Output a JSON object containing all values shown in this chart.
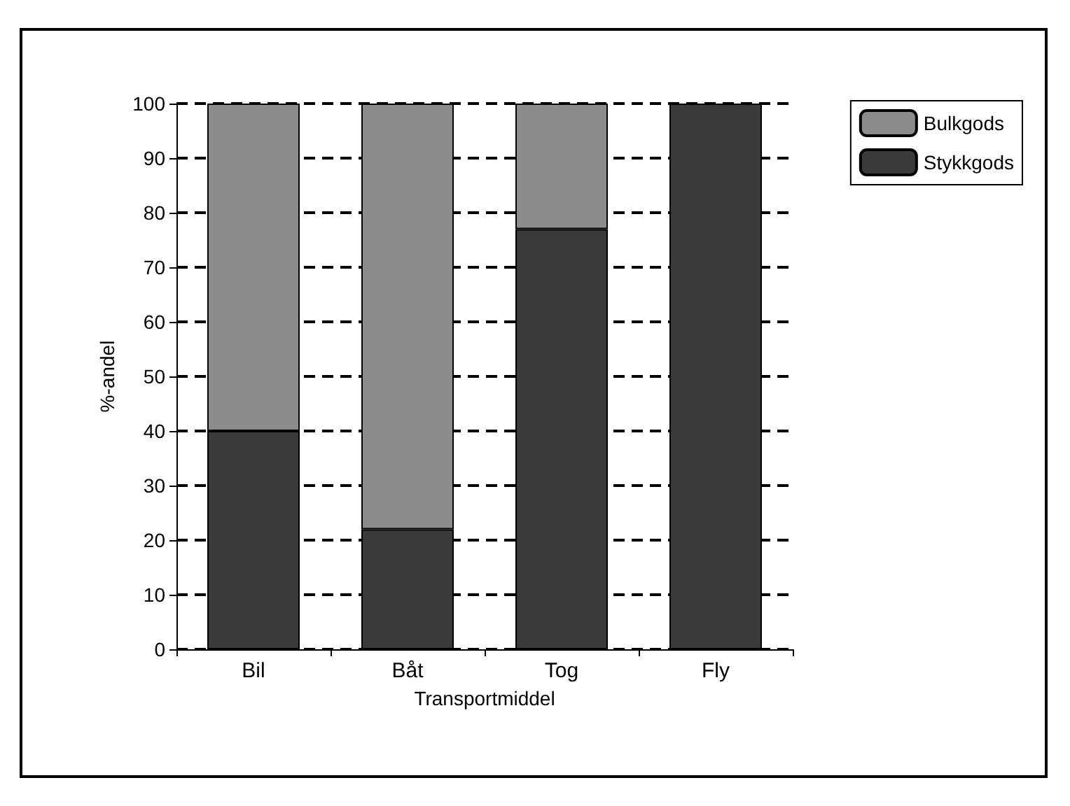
{
  "chart_data": {
    "type": "bar",
    "stacked": true,
    "xlabel": "Transportmiddel",
    "ylabel": "%-andel",
    "categories": [
      "Bil",
      "Båt",
      "Tog",
      "Fly"
    ],
    "series": [
      {
        "name": "Stykkgods",
        "color": "#3a3a3a",
        "values": [
          40,
          22,
          77,
          100
        ]
      },
      {
        "name": "Bulkgods",
        "color": "#8c8c8c",
        "values": [
          60,
          78,
          23,
          0
        ]
      }
    ],
    "ylim": [
      0,
      100
    ],
    "yticks": [
      0,
      10,
      20,
      30,
      40,
      50,
      60,
      70,
      80,
      90,
      100
    ],
    "grid": "y",
    "legend": "top right"
  }
}
